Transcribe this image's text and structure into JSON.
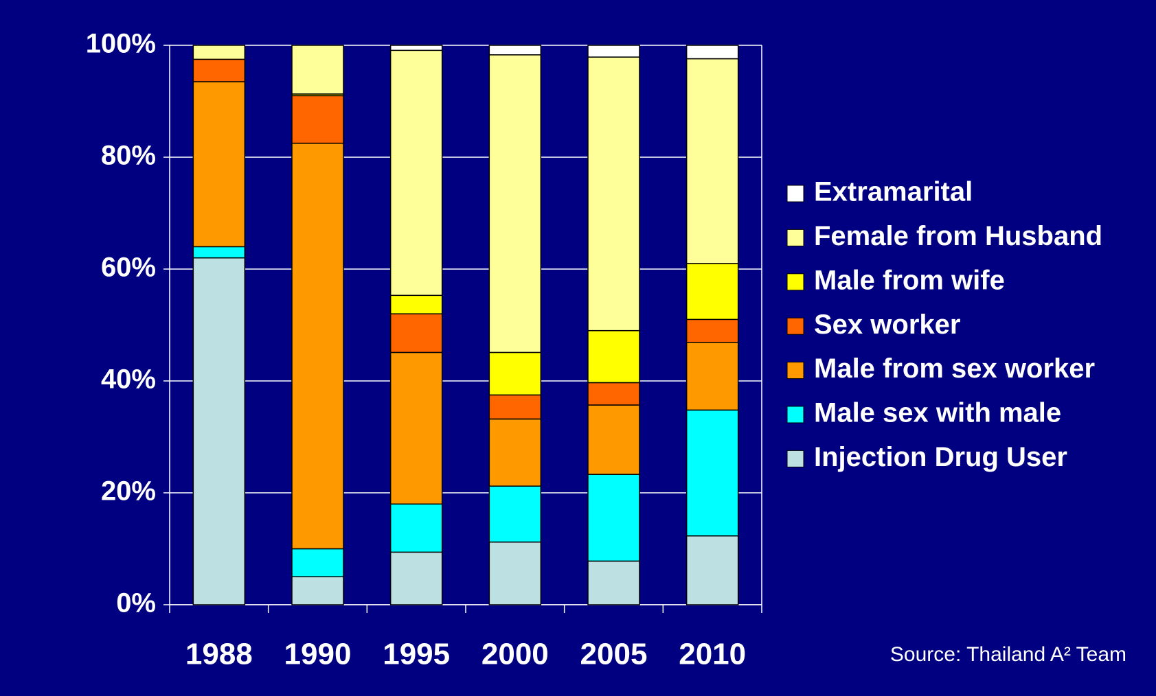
{
  "chart_data": {
    "type": "stacked_bar",
    "categories": [
      "1988",
      "1990",
      "1995",
      "2000",
      "2005",
      "2010"
    ],
    "series": [
      {
        "name": "Injection Drug User",
        "color": "#bde0e3",
        "values": [
          62,
          5,
          9.4,
          11.2,
          7.8,
          12.3
        ]
      },
      {
        "name": "Male sex with male",
        "color": "#00ffff",
        "values": [
          2,
          5,
          8.6,
          10,
          15.5,
          22.5
        ]
      },
      {
        "name": "Male from sex worker",
        "color": "#ff9900",
        "values": [
          29.5,
          72.5,
          27.1,
          12,
          12.4,
          12.1
        ]
      },
      {
        "name": "Sex worker",
        "color": "#ff6600",
        "values": [
          4,
          8.5,
          6.9,
          4.3,
          4,
          4.1
        ]
      },
      {
        "name": "Male from wife",
        "color": "#ffff00",
        "values": [
          0,
          0.3,
          3.3,
          7.6,
          9.3,
          10
        ]
      },
      {
        "name": "Female from Husband",
        "color": "#ffff99",
        "values": [
          2.5,
          8.7,
          43.8,
          53.2,
          48.9,
          36.6
        ]
      },
      {
        "name": "Extramarital",
        "color": "#ffffff",
        "values": [
          0,
          0,
          0.9,
          1.7,
          2.1,
          2.4
        ]
      }
    ],
    "ylim": [
      0,
      100
    ],
    "yticks": [
      {
        "value": 0,
        "label": "0%"
      },
      {
        "value": 20,
        "label": "20%"
      },
      {
        "value": 40,
        "label": "40%"
      },
      {
        "value": 60,
        "label": "60%"
      },
      {
        "value": 80,
        "label": "80%"
      },
      {
        "value": 100,
        "label": "100%"
      }
    ],
    "grid": true,
    "legend": "right",
    "source": "Source: Thailand A² Team"
  }
}
